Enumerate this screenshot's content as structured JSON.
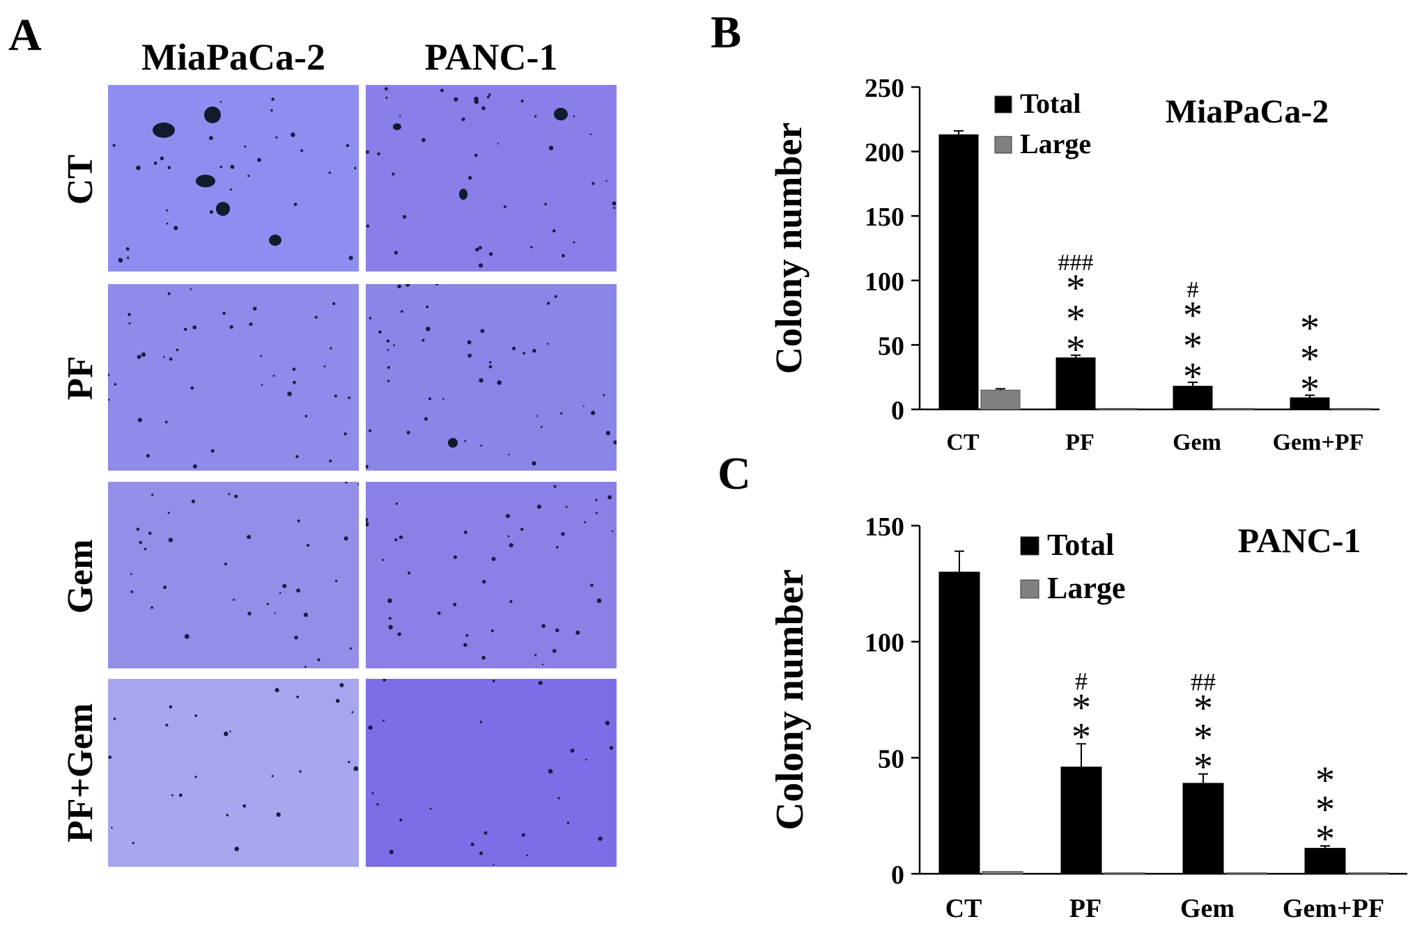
{
  "panel_a": {
    "letter": "A",
    "columns": [
      "MiaPaCa-2",
      "PANC-1"
    ],
    "rows": [
      "CT",
      "PF",
      "Gem",
      "PF+Gem"
    ]
  },
  "chart_data": [
    {
      "panel": "B",
      "type": "bar",
      "title": "MiaPaCa-2",
      "xlabel": "",
      "ylabel": "Colony number",
      "ylim": [
        0,
        250
      ],
      "yticks": [
        0,
        50,
        100,
        150,
        200,
        250
      ],
      "categories": [
        "CT",
        "PF",
        "Gem",
        "Gem+PF"
      ],
      "series": [
        {
          "name": "Total",
          "color": "#000000",
          "values": [
            213,
            40,
            18,
            9
          ],
          "errors": [
            3,
            2,
            3,
            2
          ]
        },
        {
          "name": "Large",
          "color": "#808080",
          "values": [
            15,
            0,
            0,
            0
          ],
          "errors": [
            1,
            0,
            0,
            0
          ]
        }
      ],
      "annotations": [
        {
          "category": "PF",
          "stars": "***",
          "hash": "###"
        },
        {
          "category": "Gem",
          "stars": "***",
          "hash": "#"
        },
        {
          "category": "Gem+PF",
          "stars": "***",
          "hash": ""
        }
      ],
      "legend_position": "top-left"
    },
    {
      "panel": "C",
      "type": "bar",
      "title": "PANC-1",
      "xlabel": "",
      "ylabel": "Colony number",
      "ylim": [
        0,
        150
      ],
      "yticks": [
        0,
        50,
        100,
        150
      ],
      "categories": [
        "CT",
        "PF",
        "Gem",
        "Gem+PF"
      ],
      "series": [
        {
          "name": "Total",
          "color": "#000000",
          "values": [
            130,
            46,
            39,
            11
          ],
          "errors": [
            9,
            10,
            4,
            1
          ]
        },
        {
          "name": "Large",
          "color": "#808080",
          "values": [
            1,
            0,
            0,
            0
          ],
          "errors": [
            0,
            0,
            0,
            0
          ]
        }
      ],
      "annotations": [
        {
          "category": "PF",
          "stars": "**",
          "hash": "#"
        },
        {
          "category": "Gem",
          "stars": "***",
          "hash": "##"
        },
        {
          "category": "Gem+PF",
          "stars": "***",
          "hash": ""
        }
      ],
      "legend_position": "top-left"
    }
  ]
}
